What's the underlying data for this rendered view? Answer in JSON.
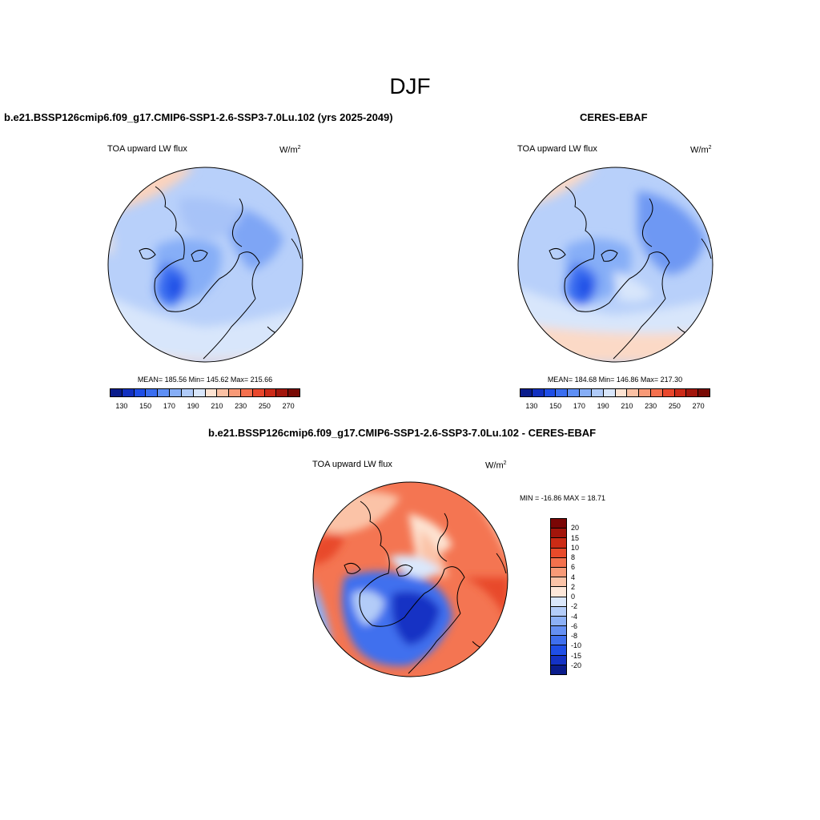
{
  "figure": {
    "season": "DJF"
  },
  "panels": {
    "model": {
      "title": "b.e21.BSSP126cmip6.f09_g17.CMIP6-SSP1-2.6-SSP3-7.0Lu.102 (yrs 2025-2049)",
      "variable": "TOA upward LW flux",
      "units_base": "W/m",
      "units_exp": "2",
      "stats": "MEAN= 185.56  Min= 145.62  Max= 215.66"
    },
    "obs": {
      "title": "CERES-EBAF",
      "variable": "TOA upward LW flux",
      "units_base": "W/m",
      "units_exp": "2",
      "stats": "MEAN= 184.68  Min= 146.86  Max= 217.30"
    },
    "diff": {
      "title": "b.e21.BSSP126cmip6.f09_g17.CMIP6-SSP1-2.6-SSP3-7.0Lu.102 - CERES-EBAF",
      "variable": "TOA upward LW flux",
      "units_base": "W/m",
      "units_exp": "2",
      "stats": "MIN = -16.86 MAX =  18.71"
    }
  },
  "colorbar_abs": {
    "colors": [
      "#0a1c8c",
      "#1230c0",
      "#1f4ee6",
      "#3a6ef0",
      "#5e8ff5",
      "#86aef7",
      "#b0cbf9",
      "#d8e6fb",
      "#fde3d2",
      "#fbc1a4",
      "#f89a77",
      "#f4704e",
      "#e9472c",
      "#cc2a18",
      "#a2160c",
      "#780a05"
    ],
    "ticks": [
      "130",
      "150",
      "170",
      "190",
      "210",
      "230",
      "250",
      "270"
    ]
  },
  "colorbar_diff": {
    "colors": [
      "#7a0605",
      "#a3150b",
      "#cc2b15",
      "#e84a2a",
      "#f4714d",
      "#f89a77",
      "#fbc3a7",
      "#fde7d9",
      "#dae7fb",
      "#b3ccf8",
      "#8cb0f6",
      "#6590f3",
      "#3f6fee",
      "#1f4ee6",
      "#1432c4",
      "#0a1c8c"
    ],
    "ticks": [
      "20",
      "15",
      "10",
      "8",
      "6",
      "4",
      "2",
      "0",
      "-2",
      "-4",
      "-6",
      "-8",
      "-10",
      "-15",
      "-20"
    ]
  }
}
